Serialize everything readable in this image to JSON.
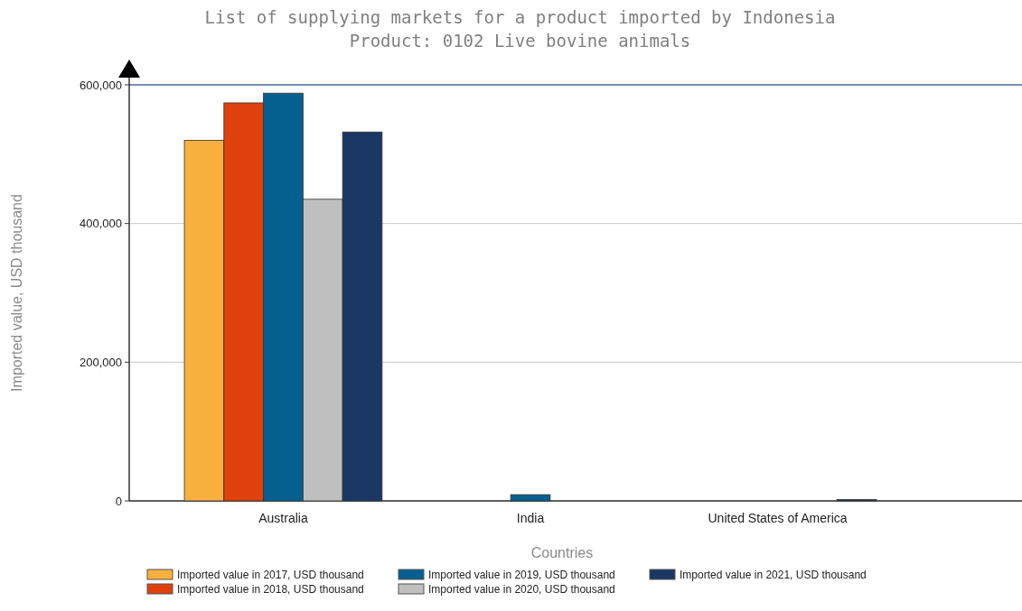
{
  "chart_data": {
    "type": "bar",
    "title": "List of supplying markets for a product imported by Indonesia",
    "subtitle": "Product: 0102 Live bovine animals",
    "xlabel": "Countries",
    "ylabel": "Imported value, USD thousand",
    "categories": [
      "Australia",
      "India",
      "United States of America"
    ],
    "series": [
      {
        "name": "Imported value in 2017, USD thousand",
        "color": "#f9b03e",
        "values": [
          520000,
          0,
          0
        ]
      },
      {
        "name": "Imported value in 2018, USD thousand",
        "color": "#e0400c",
        "values": [
          574000,
          0,
          0
        ]
      },
      {
        "name": "Imported value in 2019, USD thousand",
        "color": "#04618f",
        "values": [
          588000,
          9000,
          0
        ]
      },
      {
        "name": "Imported value in 2020, USD thousand",
        "color": "#bfbfbf",
        "values": [
          435000,
          0,
          0
        ]
      },
      {
        "name": "Imported value in 2021, USD thousand",
        "color": "#1b3764",
        "values": [
          532000,
          0,
          2000
        ]
      }
    ],
    "ylim": [
      0,
      600000
    ],
    "yticks": [
      {
        "value": 0,
        "label": "0"
      },
      {
        "value": 200000,
        "label": "200,000"
      },
      {
        "value": 400000,
        "label": "400,000"
      },
      {
        "value": 600000,
        "label": "600,000"
      }
    ],
    "grid": "y",
    "legend": "bottom"
  }
}
